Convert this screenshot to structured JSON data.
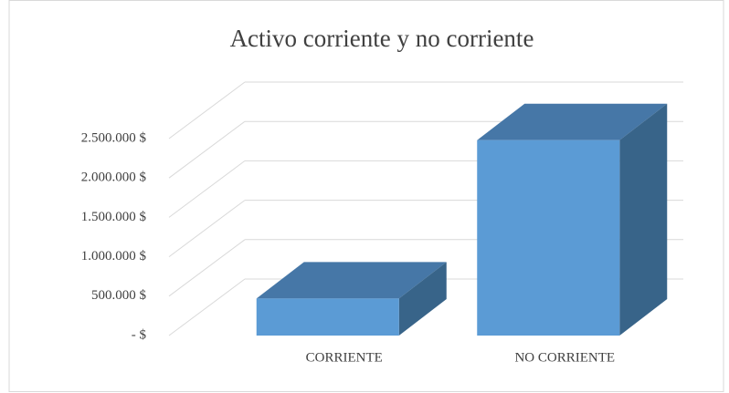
{
  "chart_data": {
    "type": "bar3d",
    "title": "Activo corriente y no corriente",
    "categories": [
      "CORRIENTE",
      "NO CORRIENTE"
    ],
    "values": [
      470000,
      2480000
    ],
    "color": "#5b9bd5",
    "ylim": [
      0,
      2500000
    ],
    "yticks": [
      {
        "value": 0,
        "label": "-  $"
      },
      {
        "value": 500000,
        "label": "500.000 $"
      },
      {
        "value": 1000000,
        "label": "1.000.000 $"
      },
      {
        "value": 1500000,
        "label": "1.500.000 $"
      },
      {
        "value": 2000000,
        "label": "2.000.000 $"
      },
      {
        "value": 2500000,
        "label": "2.500.000 $"
      }
    ],
    "grid": true
  }
}
